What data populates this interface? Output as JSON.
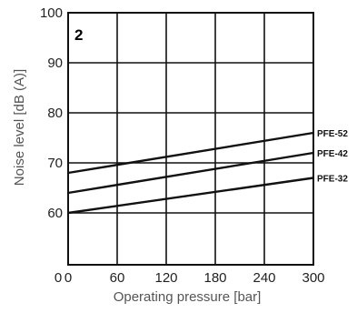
{
  "chart_data": {
    "type": "line",
    "panel_label": "2",
    "xlabel": "Operating pressure [bar]",
    "ylabel": "Noise level [dB (A)]",
    "xlim": [
      0,
      300
    ],
    "ylim": [
      0,
      100
    ],
    "x_ticks": [
      "0",
      "60",
      "120",
      "180",
      "240",
      "300"
    ],
    "y_ticks": [
      "0",
      "60",
      "70",
      "80",
      "90",
      "100"
    ],
    "grid": true,
    "series": [
      {
        "name": "PFE-52",
        "x": [
          0,
          300
        ],
        "y": [
          68,
          76
        ]
      },
      {
        "name": "PFE-42",
        "x": [
          0,
          300
        ],
        "y": [
          64,
          72
        ]
      },
      {
        "name": "PFE-32",
        "x": [
          0,
          300
        ],
        "y": [
          60,
          67
        ]
      }
    ]
  }
}
